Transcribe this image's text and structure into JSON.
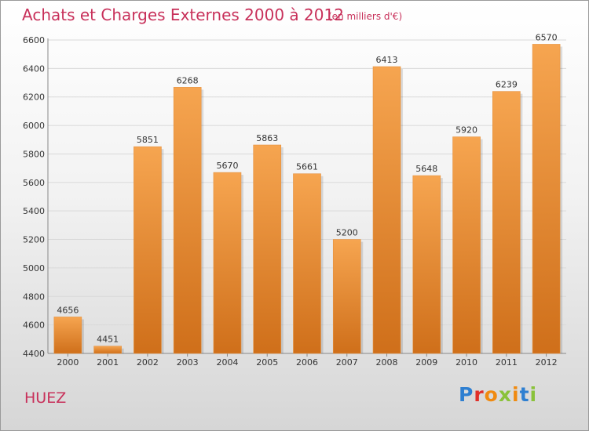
{
  "header": {
    "title": "Achats et Charges Externes 2000 à 2012",
    "unit": "(en milliers d'€)"
  },
  "footer": {
    "place": "HUEZ",
    "logo": "Proxiti"
  },
  "colors": {
    "title": "#c8305a",
    "bar_top": "#f6a550",
    "bar_bottom": "#cf6f1a",
    "grid": "#d9d9d9",
    "logo_letters": [
      "#2e7fd1",
      "#e0302a",
      "#f08a10",
      "#8ac23a",
      "#f08a10",
      "#2e7fd1",
      "#8ac23a"
    ]
  },
  "chart_data": {
    "type": "bar",
    "title": "Achats et Charges Externes 2000 à 2012",
    "subtitle": "(en milliers d'€)",
    "categories": [
      "2000",
      "2001",
      "2002",
      "2003",
      "2004",
      "2005",
      "2006",
      "2007",
      "2008",
      "2009",
      "2010",
      "2011",
      "2012"
    ],
    "values": [
      4656,
      4451,
      5851,
      6268,
      5670,
      5863,
      5661,
      5200,
      6413,
      5648,
      5920,
      6239,
      6570
    ],
    "ylim": [
      4400,
      6600
    ],
    "yticks": [
      4400,
      4600,
      4800,
      5000,
      5200,
      5400,
      5600,
      5800,
      6000,
      6200,
      6400,
      6600
    ],
    "grid": true,
    "legend": "none"
  }
}
